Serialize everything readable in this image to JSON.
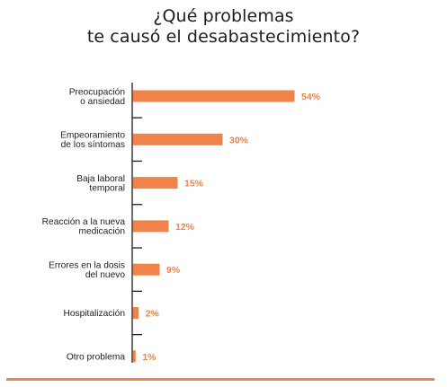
{
  "title": [
    "¿Qué problemas",
    "te causó el desabastecimiento?"
  ],
  "colors": {
    "bar": "#f0824a",
    "axis": "#1d1d1b",
    "label": "#1d1d1b",
    "value": "#f0824a"
  },
  "chart_data": {
    "type": "bar",
    "orientation": "horizontal",
    "title": "¿Qué problemas te causó el desabastecimiento?",
    "categories": [
      [
        "Preocupación",
        "o ansiedad"
      ],
      [
        "Empeoramiento",
        "de los síntomas"
      ],
      [
        "Baja laboral",
        "temporal"
      ],
      [
        "Reacción a la nueva",
        "medicación"
      ],
      [
        "Errores en la dosis",
        "del nuevo"
      ],
      [
        "Hospitalización"
      ],
      [
        "Otro problema"
      ]
    ],
    "values": [
      54,
      30,
      15,
      12,
      9,
      2,
      1
    ],
    "value_labels": [
      "54%",
      "30%",
      "15%",
      "12%",
      "9%",
      "2%",
      "1%"
    ],
    "xlim": [
      0,
      54
    ],
    "grid": false,
    "legend": "none"
  }
}
